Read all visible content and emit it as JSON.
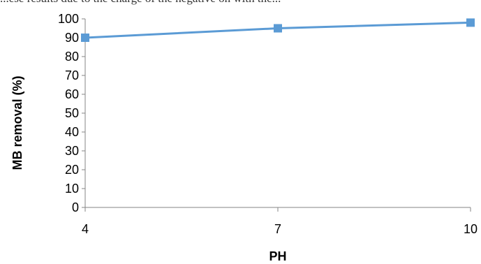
{
  "header_fragment": "...ese results due to the charge of the negative on with the...",
  "chart_data": {
    "type": "line",
    "title": "",
    "xlabel": "PH",
    "ylabel": "MB removal (%)",
    "x": [
      4,
      7,
      10
    ],
    "series": [
      {
        "values": [
          90,
          95,
          98
        ]
      }
    ],
    "x_ticks": [
      "4",
      "7",
      "10"
    ],
    "y_ticks": [
      "0",
      "10",
      "20",
      "30",
      "40",
      "50",
      "60",
      "70",
      "80",
      "90",
      "100"
    ],
    "ylim": [
      0,
      100
    ],
    "grid": false,
    "legend": "none",
    "colors": {
      "line": "#5B9BD5",
      "marker": "#5B9BD5",
      "axis": "#868686"
    }
  }
}
